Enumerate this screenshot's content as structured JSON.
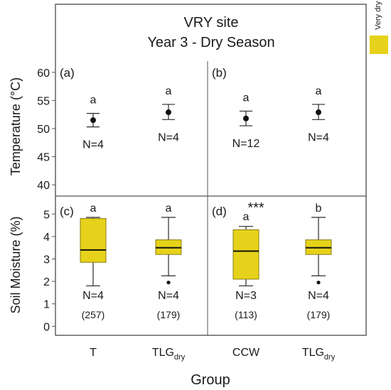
{
  "title": {
    "line1": "VRY site",
    "line2": "Year 3 - Dry Season"
  },
  "legend": {
    "label": "Very dry",
    "color": "#e6d21a"
  },
  "xlabel": "Group",
  "colors": {
    "box_fill": "#e6d21a",
    "line": "#2a2a2a",
    "frame": "#555555"
  },
  "chart_data": [
    {
      "panel": "(a)",
      "type": "scatter",
      "ylabel": "Temperature (°C)",
      "ylim": [
        38,
        62
      ],
      "yticks": [
        40,
        45,
        50,
        55,
        60
      ],
      "categories": [
        "T",
        "TLG_dry"
      ],
      "points": [
        {
          "category": "T",
          "mean": 51.5,
          "err_low": 50.3,
          "err_high": 52.7,
          "letter": "a",
          "n_label": "N=4"
        },
        {
          "category": "TLG_dry",
          "mean": 52.9,
          "err_low": 51.6,
          "err_high": 54.3,
          "letter": "a",
          "n_label": "N=4"
        }
      ]
    },
    {
      "panel": "(b)",
      "type": "scatter",
      "ylim": [
        38,
        62
      ],
      "categories": [
        "CCW",
        "TLG_dry"
      ],
      "points": [
        {
          "category": "CCW",
          "mean": 51.8,
          "err_low": 50.5,
          "err_high": 53.1,
          "letter": "a",
          "n_label": "N=12"
        },
        {
          "category": "TLG_dry",
          "mean": 52.9,
          "err_low": 51.6,
          "err_high": 54.3,
          "letter": "a",
          "n_label": "N=4"
        }
      ]
    },
    {
      "panel": "(c)",
      "type": "box",
      "ylabel": "Soil Moisture (%)",
      "ylim": [
        -0.4,
        5.8
      ],
      "yticks": [
        0,
        1,
        2,
        3,
        4,
        5
      ],
      "categories": [
        "T",
        "TLG_dry"
      ],
      "boxes": [
        {
          "category": "T",
          "whisker_low": 1.8,
          "q1": 2.85,
          "median": 3.4,
          "q3": 4.8,
          "whisker_high": 4.85,
          "outliers": [],
          "letter": "a",
          "n_label": "N=4",
          "count_label": "(257)"
        },
        {
          "category": "TLG_dry",
          "whisker_low": 2.25,
          "q1": 3.2,
          "median": 3.5,
          "q3": 3.85,
          "whisker_high": 4.85,
          "outliers": [
            1.95
          ],
          "letter": "a",
          "n_label": "N=4",
          "count_label": "(179)"
        }
      ]
    },
    {
      "panel": "(d)",
      "type": "box",
      "ylim": [
        -0.4,
        5.8
      ],
      "categories": [
        "CCW",
        "TLG_dry"
      ],
      "significance": "***",
      "boxes": [
        {
          "category": "CCW",
          "whisker_low": 1.8,
          "q1": 2.1,
          "median": 3.35,
          "q3": 4.3,
          "whisker_high": 4.45,
          "outliers": [],
          "letter": "a",
          "n_label": "N=3",
          "count_label": "(113)"
        },
        {
          "category": "TLG_dry",
          "whisker_low": 2.25,
          "q1": 3.2,
          "median": 3.5,
          "q3": 3.85,
          "whisker_high": 4.85,
          "outliers": [
            1.95
          ],
          "letter": "b",
          "n_label": "N=4",
          "count_label": "(179)"
        }
      ]
    }
  ],
  "xticks": [
    {
      "main": "T",
      "sub": ""
    },
    {
      "main": "TLG",
      "sub": "dry"
    },
    {
      "main": "CCW",
      "sub": ""
    },
    {
      "main": "TLG",
      "sub": "dry"
    }
  ]
}
